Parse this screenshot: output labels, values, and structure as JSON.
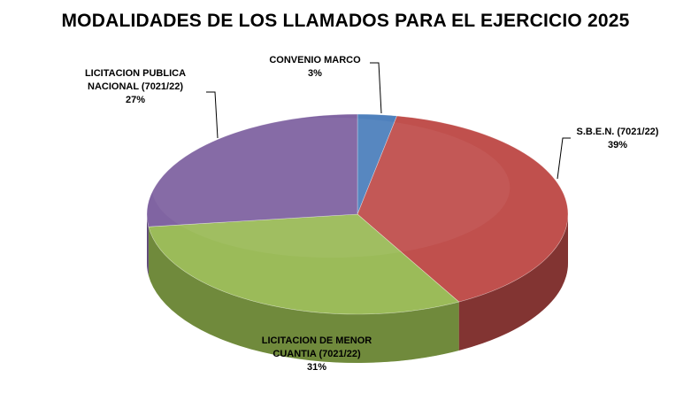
{
  "chart_data": {
    "type": "pie",
    "title": "MODALIDADES DE LOS LLAMADOS PARA EL EJERCICIO 2025",
    "legend": "none",
    "slices": [
      {
        "label_lines": [
          "CONVENIO MARCO"
        ],
        "percent_label": "3%",
        "value": 3,
        "color": "#4f81bd",
        "dark": "#2c4a6e"
      },
      {
        "label_lines": [
          "S.B.E.N.  (7021/22)"
        ],
        "percent_label": "39%",
        "value": 39,
        "color": "#c0504d",
        "dark": "#4e1e1e"
      },
      {
        "label_lines": [
          "LICITACION  DE MENOR",
          "CUANTIA  (7021/22)"
        ],
        "percent_label": "31%",
        "value": 31,
        "color": "#9bbb59",
        "dark": "#4c6224"
      },
      {
        "label_lines": [
          "LICITACION  PUBLICA",
          "NACIONAL  (7021/22)"
        ],
        "percent_label": "27%",
        "value": 27,
        "color": "#8064a2",
        "dark": "#3f2f54"
      }
    ]
  }
}
